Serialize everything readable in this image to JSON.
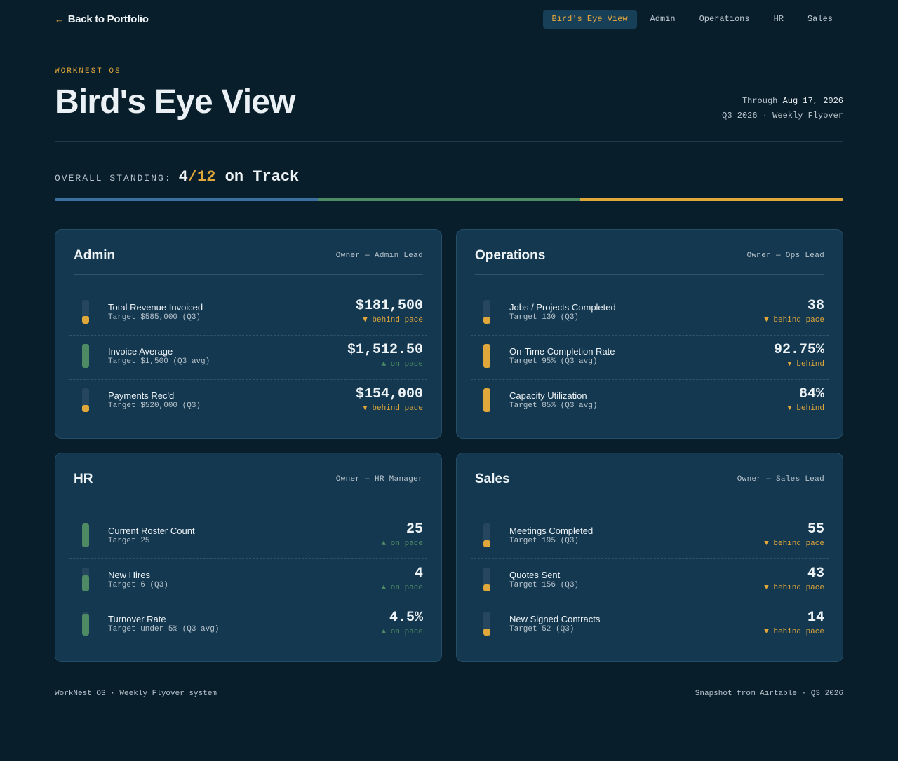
{
  "nav": {
    "back_arrow": "←",
    "back_label": "Back to Portfolio",
    "items": [
      {
        "label": "Bird's Eye View",
        "active": true
      },
      {
        "label": "Admin",
        "active": false
      },
      {
        "label": "Operations",
        "active": false
      },
      {
        "label": "HR",
        "active": false
      },
      {
        "label": "Sales",
        "active": false
      }
    ]
  },
  "header": {
    "eyebrow": "WORKNEST OS",
    "title": "Bird's Eye View",
    "through_prefix": "Through",
    "through_date": "Aug 17, 2026",
    "period": "Q3 2026 · Weekly Flyover"
  },
  "standing": {
    "label": "OVERALL STANDING:",
    "on_track": "4",
    "total": "/12",
    "suffix": "on Track",
    "bar_segments": [
      "#3a6f9f",
      "#4e8a64",
      "#e0a73a"
    ]
  },
  "colors": {
    "on_pace": "#4e8a64",
    "behind": "#e0a73a",
    "accent": "#e0a73a"
  },
  "cards": [
    {
      "title": "Admin",
      "owner": "Owner — Admin Lead",
      "metrics": [
        {
          "name": "Total Revenue Invoiced",
          "target": "Target $585,000 (Q3)",
          "value": "$181,500",
          "status": "▼ behind pace",
          "state": "behind",
          "progress": 0.31
        },
        {
          "name": "Invoice Average",
          "target": "Target $1,500 (Q3 avg)",
          "value": "$1,512.50",
          "status": "▲ on pace",
          "state": "on_pace",
          "progress": 1.0
        },
        {
          "name": "Payments Rec'd",
          "target": "Target $520,000 (Q3)",
          "value": "$154,000",
          "status": "▼ behind pace",
          "state": "behind",
          "progress": 0.3
        }
      ]
    },
    {
      "title": "Operations",
      "owner": "Owner — Ops Lead",
      "metrics": [
        {
          "name": "Jobs / Projects Completed",
          "target": "Target 130 (Q3)",
          "value": "38",
          "status": "▼ behind pace",
          "state": "behind",
          "progress": 0.29
        },
        {
          "name": "On-Time Completion Rate",
          "target": "Target 95% (Q3 avg)",
          "value": "92.75%",
          "status": "▼ behind",
          "state": "behind",
          "progress": 0.98
        },
        {
          "name": "Capacity Utilization",
          "target": "Target 85% (Q3 avg)",
          "value": "84%",
          "status": "▼ behind",
          "state": "behind",
          "progress": 0.99
        }
      ]
    },
    {
      "title": "HR",
      "owner": "Owner — HR Manager",
      "metrics": [
        {
          "name": "Current Roster Count",
          "target": "Target 25",
          "value": "25",
          "status": "▲ on pace",
          "state": "on_pace",
          "progress": 1.0
        },
        {
          "name": "New Hires",
          "target": "Target 6 (Q3)",
          "value": "4",
          "status": "▲ on pace",
          "state": "on_pace",
          "progress": 0.67
        },
        {
          "name": "Turnover Rate",
          "target": "Target under 5% (Q3 avg)",
          "value": "4.5%",
          "status": "▲ on pace",
          "state": "on_pace",
          "progress": 0.9
        }
      ]
    },
    {
      "title": "Sales",
      "owner": "Owner — Sales Lead",
      "metrics": [
        {
          "name": "Meetings Completed",
          "target": "Target 195 (Q3)",
          "value": "55",
          "status": "▼ behind pace",
          "state": "behind",
          "progress": 0.28
        },
        {
          "name": "Quotes Sent",
          "target": "Target 156 (Q3)",
          "value": "43",
          "status": "▼ behind pace",
          "state": "behind",
          "progress": 0.28
        },
        {
          "name": "New Signed Contracts",
          "target": "Target 52 (Q3)",
          "value": "14",
          "status": "▼ behind pace",
          "state": "behind",
          "progress": 0.27
        }
      ]
    }
  ],
  "footer": {
    "left": "WorkNest OS · Weekly Flyover system",
    "right": "Snapshot from Airtable · Q3 2026"
  }
}
